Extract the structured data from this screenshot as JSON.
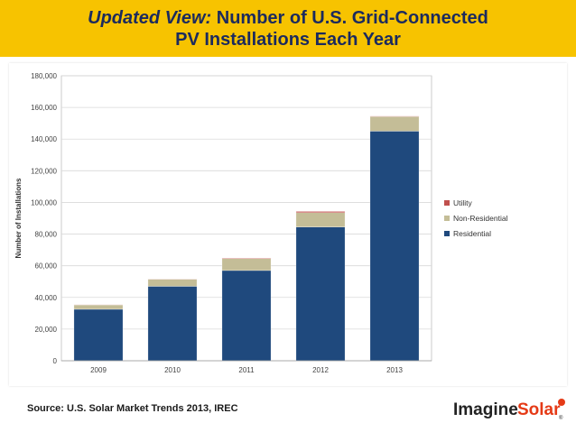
{
  "header": {
    "title_italic": "Updated View:",
    "title_rest": " Number of U.S. Grid-Connected",
    "title_line2": "PV Installations Each Year",
    "background_color": "#f7c300",
    "text_color": "#1b2a5e"
  },
  "chart_data": {
    "type": "bar",
    "stacked": true,
    "categories": [
      "2009",
      "2010",
      "2011",
      "2012",
      "2013"
    ],
    "series": [
      {
        "name": "Residential",
        "color": "#1f497d",
        "values": [
          32500,
          47000,
          57000,
          84500,
          145000
        ]
      },
      {
        "name": "Non-Residential",
        "color": "#c4bd97",
        "values": [
          2800,
          4500,
          7500,
          9000,
          9200
        ]
      },
      {
        "name": "Utility",
        "color": "#c0504d",
        "values": [
          100,
          150,
          400,
          800,
          300
        ]
      }
    ],
    "legend_order": [
      "Utility",
      "Non-Residential",
      "Residential"
    ],
    "legend_position": "right",
    "ylabel": "Number of Installations",
    "xlabel": "",
    "ylim": [
      0,
      180000
    ],
    "yticks": [
      "0",
      "20,000",
      "40,000",
      "60,000",
      "80,000",
      "100,000",
      "120,000",
      "140,000",
      "160,000",
      "180,000"
    ],
    "grid": true
  },
  "footer": {
    "source_text": "Source: U.S. Solar Market Trends 2013, IREC",
    "logo_part1": "Imagine",
    "logo_part2": "Solar",
    "logo_mark": "®"
  }
}
